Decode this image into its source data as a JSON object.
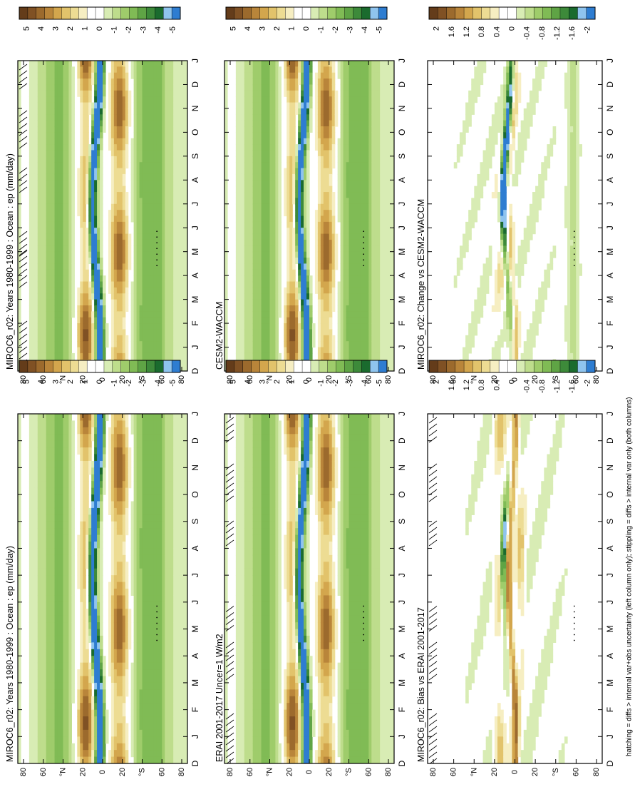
{
  "footnote": "hatching = diffs > internal var+obs uncertainty (left column only); stippling = diffs > internal var only (both columns)",
  "colors": {
    "full_scale": [
      "#2e7dd1",
      "#8fc4ee",
      "#1a6b2e",
      "#3d8a3a",
      "#5fa445",
      "#80bb55",
      "#9fcc6b",
      "#bedd8c",
      "#d8ecb4",
      "#ffffff",
      "#ffffff",
      "#f6eec2",
      "#eddc93",
      "#e2c36b",
      "#d3a64d",
      "#b9853a",
      "#9c6a2d",
      "#805124",
      "#643c1a"
    ],
    "diff_scale": [
      "#2e7dd1",
      "#8fc4ee",
      "#1a6b2e",
      "#3d8a3a",
      "#5fa445",
      "#80bb55",
      "#9fcc6b",
      "#bedd8c",
      "#d8ecb4",
      "#ffffff",
      "#ffffff",
      "#f6eec2",
      "#eddc93",
      "#e2c36b",
      "#d3a64d",
      "#b9853a",
      "#9c6a2d",
      "#805124",
      "#643c1a"
    ]
  },
  "chart_data": [
    {
      "type": "heatmap",
      "title": "MIROC6_r02: Years 1980-1999 : Ocean : ep (mm/day)",
      "months": [
        "D",
        "J",
        "F",
        "M",
        "A",
        "M",
        "J",
        "J",
        "A",
        "S",
        "O",
        "N",
        "D",
        "J"
      ],
      "lat_ticks": [
        "80",
        "60",
        "°N",
        "20",
        "0",
        "20",
        "°S",
        "60",
        "80"
      ],
      "colorbar_labels": [
        "5",
        "4",
        "3",
        "2",
        "1",
        "0",
        "-1",
        "-2",
        "-3",
        "-4",
        "-5"
      ],
      "colorbar_range": [
        -5,
        5
      ],
      "hatching": true,
      "stippling": true
    },
    {
      "type": "heatmap",
      "title": "MIROC6_r02: Years 1980-1999 : Ocean : ep (mm/day)",
      "months": [
        "D",
        "J",
        "F",
        "M",
        "A",
        "M",
        "J",
        "J",
        "A",
        "S",
        "O",
        "N",
        "D",
        "J"
      ],
      "lat_ticks": [
        "80",
        "60",
        "°N",
        "20",
        "0",
        "20",
        "°S",
        "60",
        "80"
      ],
      "colorbar_labels": [
        "5",
        "4",
        "3",
        "2",
        "1",
        "0",
        "-1",
        "-2",
        "-3",
        "-4",
        "-5"
      ],
      "colorbar_range": [
        -5,
        5
      ],
      "hatching": false,
      "stippling": true
    },
    {
      "type": "heatmap",
      "title": "ERAI 2001-2017 Uncer=1 W/m2",
      "months": [
        "D",
        "J",
        "F",
        "M",
        "A",
        "M",
        "J",
        "J",
        "A",
        "S",
        "O",
        "N",
        "D",
        "J"
      ],
      "lat_ticks": [
        "80",
        "60",
        "°N",
        "20",
        "0",
        "20",
        "°S",
        "60",
        "80"
      ],
      "colorbar_labels": [
        "5",
        "4",
        "3",
        "2",
        "1",
        "0",
        "-1",
        "-2",
        "-3",
        "-4",
        "-5"
      ],
      "colorbar_range": [
        -5,
        5
      ],
      "hatching": true,
      "stippling": true
    },
    {
      "type": "heatmap",
      "title": "CESM2-WACCM",
      "months": [
        "D",
        "J",
        "F",
        "M",
        "A",
        "M",
        "J",
        "J",
        "A",
        "S",
        "O",
        "N",
        "D",
        "J"
      ],
      "lat_ticks": [
        "80",
        "60",
        "°N",
        "20",
        "0",
        "20",
        "°S",
        "60",
        "80"
      ],
      "colorbar_labels": [
        "5",
        "4",
        "3",
        "2",
        "1",
        "0",
        "-1",
        "-2",
        "-3",
        "-4",
        "-5"
      ],
      "colorbar_range": [
        -5,
        5
      ],
      "hatching": false,
      "stippling": true
    },
    {
      "type": "heatmap",
      "title": "MIROC6_r02: Bias vs ERAI 2001-2017",
      "months": [
        "D",
        "J",
        "F",
        "M",
        "A",
        "M",
        "J",
        "J",
        "A",
        "S",
        "O",
        "N",
        "D",
        "J"
      ],
      "lat_ticks": [
        "80",
        "60",
        "°N",
        "20",
        "0",
        "20",
        "°S",
        "60",
        "80"
      ],
      "colorbar_labels": [
        "2",
        "1.6",
        "1.2",
        "0.8",
        "0.4",
        "0",
        "-0.4",
        "-0.8",
        "-1.2",
        "-1.6",
        "-2"
      ],
      "colorbar_range": [
        -2,
        2
      ],
      "hatching": true,
      "stippling": true
    },
    {
      "type": "heatmap",
      "title": "MIROC6_r02: Change vs CESM2-WACCM",
      "months": [
        "D",
        "J",
        "F",
        "M",
        "A",
        "M",
        "J",
        "J",
        "A",
        "S",
        "O",
        "N",
        "D",
        "J"
      ],
      "lat_ticks": [
        "80",
        "60",
        "°N",
        "20",
        "0",
        "20",
        "°S",
        "60",
        "80"
      ],
      "colorbar_labels": [
        "2",
        "1.6",
        "1.2",
        "0.8",
        "0.4",
        "0",
        "-0.4",
        "-0.8",
        "-1.2",
        "-1.6",
        "-2"
      ],
      "colorbar_range": [
        -2,
        2
      ],
      "hatching": false,
      "stippling": true
    }
  ]
}
